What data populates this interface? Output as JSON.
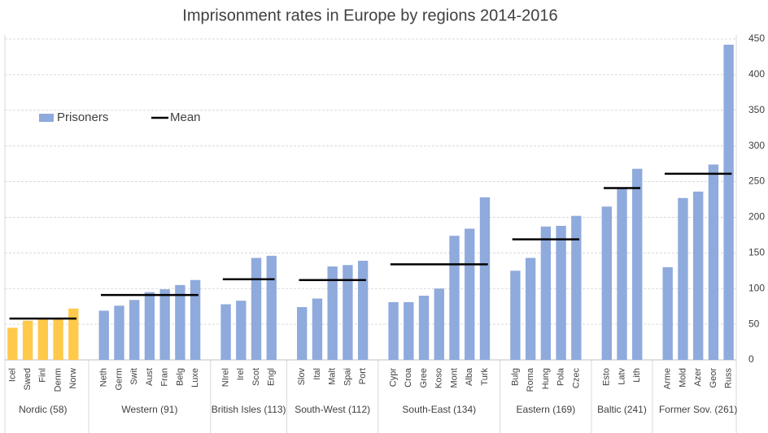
{
  "chart_data": {
    "type": "bar",
    "title": "Imprisonment rates in Europe by regions 2014-2016",
    "categories": [
      "Icel",
      "Swed",
      "Finl",
      "Denm",
      "Norw",
      null,
      "Neth",
      "Germ",
      "Swit",
      "Aust",
      "Fran",
      "Belg",
      "Luxe",
      null,
      "NIrel",
      "Irel",
      "Scot",
      "Engl",
      null,
      "Slov",
      "Ital",
      "Malt",
      "Spai",
      "Port",
      null,
      "Cypr",
      "Croa",
      "Gree",
      "Koso",
      "Mont",
      "Alba",
      "Turk",
      null,
      "Bulg",
      "Roma",
      "Hung",
      "Pola",
      "Czec",
      null,
      "Esto",
      "Latv",
      "Lith",
      null,
      "Arme",
      "Mold",
      "Azer",
      "Geor",
      "Russ"
    ],
    "series": [
      {
        "name": "Prisoners",
        "color": "#8faadc",
        "values": [
          45,
          55,
          57,
          59,
          72,
          null,
          69,
          76,
          84,
          95,
          99,
          105,
          112,
          null,
          78,
          83,
          143,
          146,
          null,
          74,
          86,
          131,
          133,
          139,
          null,
          81,
          81,
          90,
          100,
          174,
          184,
          228,
          null,
          125,
          143,
          187,
          188,
          202,
          null,
          215,
          240,
          268,
          null,
          130,
          227,
          236,
          274,
          442
        ]
      }
    ],
    "mean_legend": "Mean",
    "mean_color": "#000000",
    "groups": [
      {
        "label": "Nordic (58)",
        "mean": 58,
        "bar_color": "#ffc94a"
      },
      {
        "label": "Western (91)",
        "mean": 91,
        "bar_color": "#8faadc"
      },
      {
        "label": "British Isles (113)",
        "mean": 113,
        "bar_color": "#8faadc"
      },
      {
        "label": "South-West (112)",
        "mean": 112,
        "bar_color": "#8faadc"
      },
      {
        "label": "South-East (134)",
        "mean": 134,
        "bar_color": "#8faadc"
      },
      {
        "label": "Eastern (169)",
        "mean": 169,
        "bar_color": "#8faadc"
      },
      {
        "label": "Baltic (241)",
        "mean": 241,
        "bar_color": "#8faadc"
      },
      {
        "label": "Former Sov. (261)",
        "mean": 261,
        "bar_color": "#8faadc"
      }
    ],
    "ylim": [
      0,
      450
    ],
    "yticks": [
      0,
      50,
      100,
      150,
      200,
      250,
      300,
      350,
      400,
      450
    ],
    "grid": true
  }
}
